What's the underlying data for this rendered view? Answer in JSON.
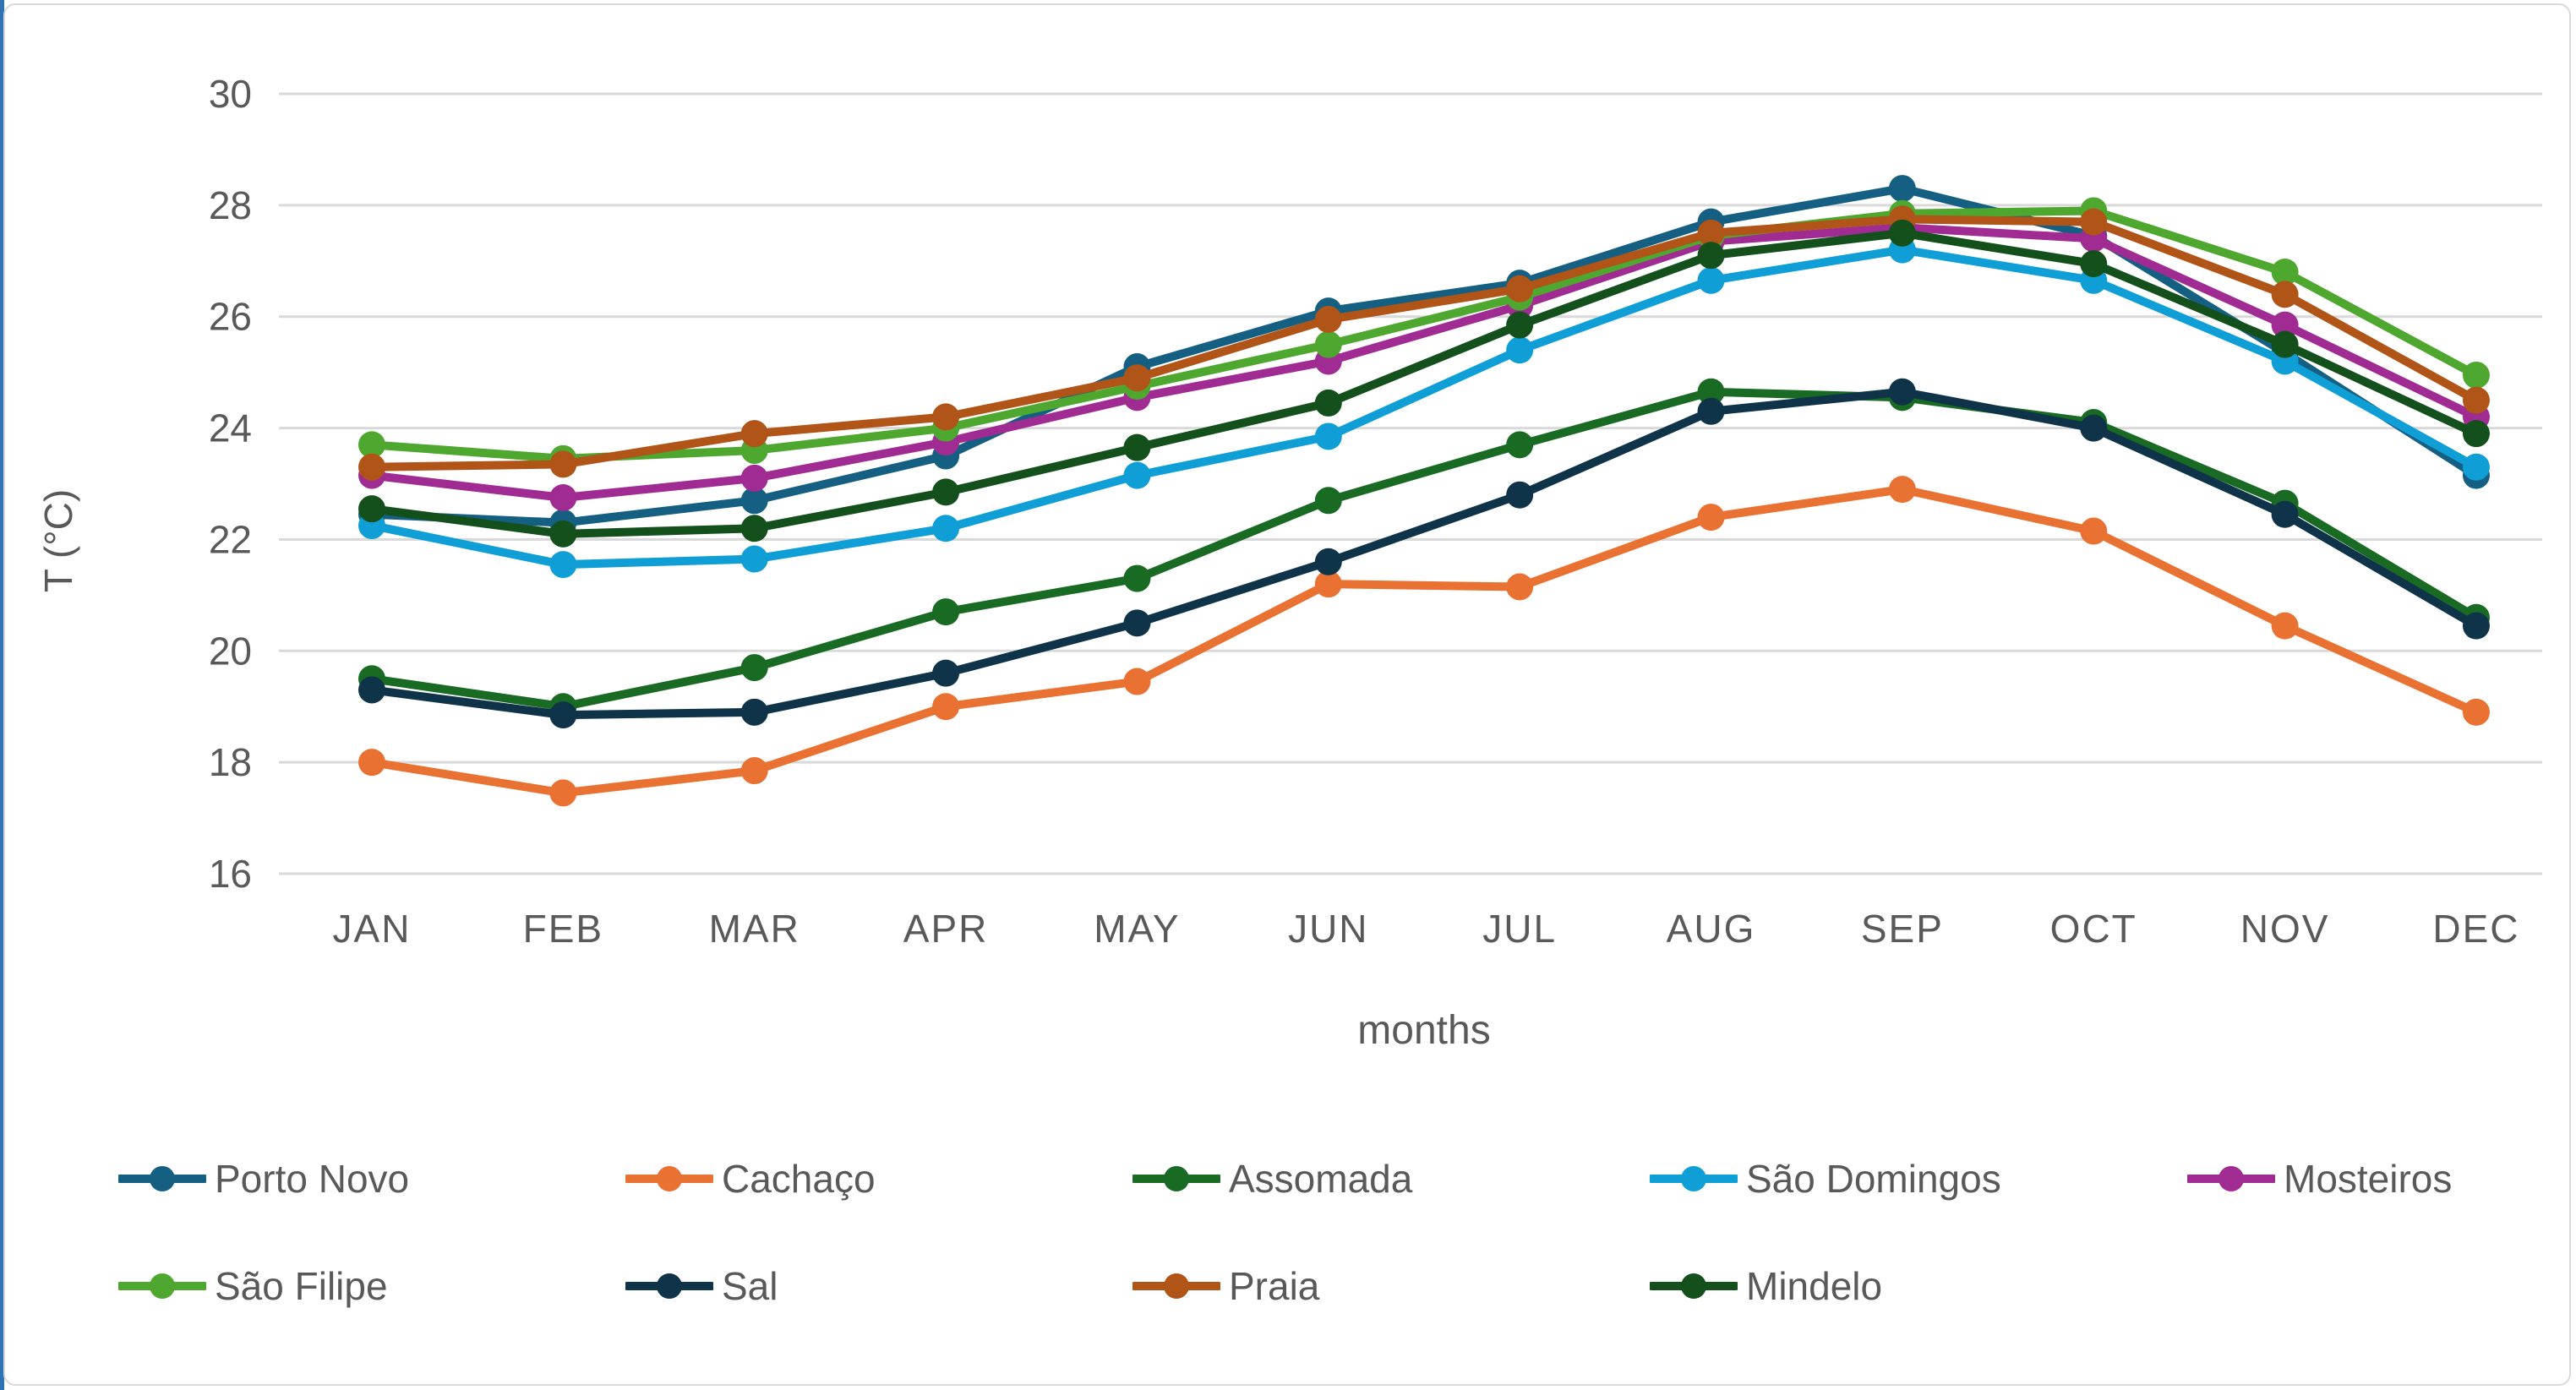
{
  "chart_data": {
    "type": "line",
    "title": "",
    "xlabel": "months",
    "ylabel": "T (°C)",
    "ylim": [
      16,
      30
    ],
    "ytick_step": 2,
    "grid": true,
    "legend_position": "bottom",
    "marker": "circle",
    "axis_text_color": "#595959",
    "gridline_color": "#d9d9d9",
    "categories": [
      "JAN",
      "FEB",
      "MAR",
      "APR",
      "MAY",
      "JUN",
      "JUL",
      "AUG",
      "SEP",
      "OCT",
      "NOV",
      "DEC"
    ],
    "series": [
      {
        "name": "Porto Novo",
        "color": "#156082",
        "values": [
          22.45,
          22.3,
          22.7,
          23.5,
          25.1,
          26.1,
          26.6,
          27.7,
          28.3,
          27.45,
          25.35,
          23.15
        ]
      },
      {
        "name": "Cachaço",
        "color": "#E97132",
        "values": [
          18.0,
          17.45,
          17.85,
          19.0,
          19.45,
          21.2,
          21.15,
          22.4,
          22.9,
          22.15,
          20.45,
          18.9
        ]
      },
      {
        "name": "Assomada",
        "color": "#196B24",
        "values": [
          19.5,
          19.0,
          19.7,
          20.7,
          21.3,
          22.7,
          23.7,
          24.65,
          24.55,
          24.1,
          22.65,
          20.6
        ]
      },
      {
        "name": "São Domingos",
        "color": "#0F9ED5",
        "values": [
          22.25,
          21.55,
          21.65,
          22.2,
          23.15,
          23.85,
          25.4,
          26.65,
          27.2,
          26.65,
          25.2,
          23.3
        ]
      },
      {
        "name": "Mosteiros",
        "color": "#A02B93",
        "values": [
          23.15,
          22.75,
          23.1,
          23.75,
          24.55,
          25.2,
          26.2,
          27.35,
          27.6,
          27.4,
          25.85,
          24.2
        ]
      },
      {
        "name": "São Filipe",
        "color": "#4EA72E",
        "values": [
          23.7,
          23.45,
          23.6,
          24.0,
          24.75,
          25.5,
          26.35,
          27.45,
          27.85,
          27.9,
          26.8,
          24.95
        ]
      },
      {
        "name": "Sal",
        "color": "#0F3449",
        "values": [
          19.3,
          18.85,
          18.9,
          19.6,
          20.5,
          21.6,
          22.8,
          24.3,
          24.65,
          24.0,
          22.45,
          20.45
        ]
      },
      {
        "name": "Praia",
        "color": "#B05417",
        "values": [
          23.3,
          23.35,
          23.9,
          24.2,
          24.9,
          25.95,
          26.5,
          27.5,
          27.75,
          27.7,
          26.4,
          24.5
        ]
      },
      {
        "name": "Mindelo",
        "color": "#13501B",
        "values": [
          22.55,
          22.1,
          22.2,
          22.85,
          23.65,
          24.45,
          25.85,
          27.1,
          27.5,
          26.95,
          25.5,
          23.9
        ]
      }
    ]
  }
}
